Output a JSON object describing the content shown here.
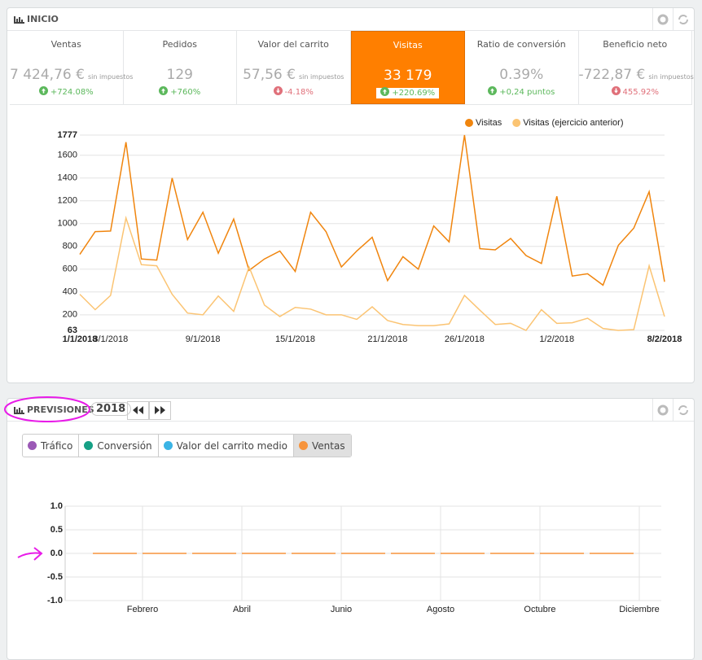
{
  "header": {
    "title": "INICIO"
  },
  "kpis": [
    {
      "label": "Ventas",
      "value": "7 424,76 €",
      "note": "sin impuestos",
      "change": "+724.08%",
      "trend": "up"
    },
    {
      "label": "Pedidos",
      "value": "129",
      "change": "+760%",
      "trend": "up"
    },
    {
      "label": "Valor del carrito",
      "value": "57,56 €",
      "note": "sin impuestos",
      "change": "-4.18%",
      "trend": "down"
    },
    {
      "label": "Visitas",
      "value": "33 179",
      "change": "+220.69%",
      "trend": "up",
      "active": true
    },
    {
      "label": "Ratio de conversión",
      "value": "0.39%",
      "change": "+0,24 puntos",
      "trend": "up"
    },
    {
      "label": "Beneficio neto",
      "value": "-722,87 €",
      "note": "sin impuestos",
      "change": "455.92%",
      "trend": "down"
    }
  ],
  "chart_data": [
    {
      "type": "line",
      "categories": [
        "1/1/2018",
        null,
        "3/1/2018",
        null,
        null,
        null,
        null,
        null,
        "9/1/2018",
        null,
        null,
        null,
        null,
        null,
        "15/1/2018",
        null,
        null,
        null,
        null,
        null,
        "21/1/2018",
        null,
        null,
        null,
        null,
        "26/1/2018",
        null,
        null,
        null,
        null,
        null,
        "1/2/2018",
        null,
        null,
        null,
        null,
        null,
        null,
        "8/2/2018"
      ],
      "series": [
        {
          "name": "Visitas",
          "color": "#f0850e",
          "values": [
            730,
            930,
            935,
            1715,
            690,
            680,
            1400,
            860,
            1100,
            740,
            1040,
            590,
            690,
            760,
            580,
            1100,
            930,
            620,
            760,
            880,
            500,
            710,
            600,
            980,
            840,
            1777,
            780,
            770,
            870,
            720,
            650,
            1240,
            540,
            560,
            460,
            810,
            960,
            1280,
            490
          ]
        },
        {
          "name": "Visitas (ejercicio anterior)",
          "color": "#fbc473",
          "values": [
            380,
            245,
            370,
            1050,
            640,
            630,
            380,
            215,
            200,
            365,
            230,
            620,
            285,
            185,
            265,
            250,
            200,
            200,
            160,
            270,
            150,
            115,
            105,
            105,
            120,
            370,
            240,
            115,
            125,
            63,
            245,
            125,
            130,
            170,
            80,
            63,
            70,
            630,
            185
          ]
        }
      ],
      "ylim": [
        63,
        1777
      ],
      "yticks": [
        63,
        200,
        400,
        600,
        800,
        1000,
        1200,
        1400,
        1600,
        1777
      ],
      "grid": true,
      "legend": "top-right"
    },
    {
      "type": "line",
      "categories": [
        null,
        "Febrero",
        null,
        "Abril",
        null,
        "Junio",
        null,
        "Agosto",
        null,
        "Octubre",
        null,
        "Diciembre"
      ],
      "series": [
        {
          "color": "#f7943c",
          "values": [
            0,
            0,
            0,
            0,
            0,
            0,
            0,
            0,
            0,
            0,
            0,
            0
          ]
        }
      ],
      "ylim": [
        -1,
        1
      ],
      "yticks": [
        {
          "value": 1,
          "label": "1.0"
        },
        {
          "value": 0.5,
          "label": "0.5"
        },
        {
          "value": 0,
          "label": "0.0"
        },
        {
          "value": -0.5,
          "label": "-0.5"
        },
        {
          "value": -1,
          "label": "-1.0"
        }
      ],
      "grid": true
    }
  ],
  "forecast": {
    "title": "PREVISIONES",
    "year": "2018",
    "tabs": [
      {
        "label": "Tráfico",
        "color": "#9b59b6"
      },
      {
        "label": "Conversión",
        "color": "#16a085"
      },
      {
        "label": "Valor del carrito medio",
        "color": "#3bb4e5"
      },
      {
        "label": "Ventas",
        "color": "#f7943c",
        "active": true
      }
    ]
  }
}
